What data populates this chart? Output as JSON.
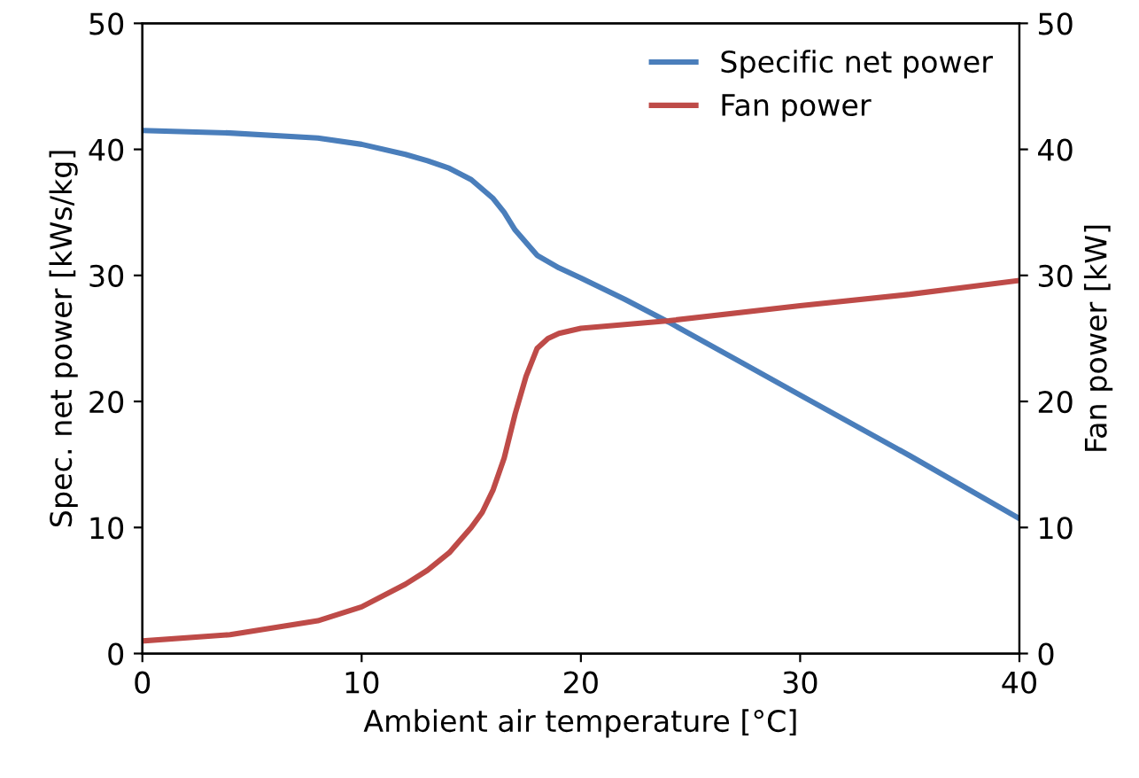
{
  "chart_data": {
    "type": "line",
    "xlabel": "Ambient air temperature [°C]",
    "ylabel": "Spec. net power [kWs/kg]",
    "y2label": "Fan power [kW]",
    "xlim": [
      0,
      40
    ],
    "xticks": [
      0,
      10,
      20,
      30,
      40
    ],
    "ylim": [
      0,
      50
    ],
    "yticks": [
      0,
      10,
      20,
      30,
      40,
      50
    ],
    "y2lim": [
      0,
      50
    ],
    "y2ticks": [
      0,
      10,
      20,
      30,
      40,
      50
    ],
    "grid": false,
    "legend": "top right",
    "marker": "none",
    "line_style": "solid",
    "series": [
      {
        "name": "Specific net power",
        "color": "#4a7ebb",
        "x": [
          0,
          4,
          8,
          10,
          12,
          13,
          14,
          15,
          16,
          16.5,
          17,
          18,
          19,
          20,
          22,
          24,
          27,
          30,
          35,
          40
        ],
        "values": [
          41.5,
          41.3,
          40.9,
          40.4,
          39.6,
          39.1,
          38.5,
          37.6,
          36.1,
          35.0,
          33.6,
          31.6,
          30.6,
          29.8,
          28.1,
          26.3,
          23.4,
          20.5,
          15.7,
          10.7
        ]
      },
      {
        "name": "Fan power",
        "color": "#be4b48",
        "axis": "y2",
        "x": [
          0,
          4,
          8,
          10,
          12,
          13,
          14,
          15,
          15.5,
          16,
          16.5,
          17,
          17.5,
          18,
          18.5,
          19,
          20,
          22,
          24,
          30,
          35,
          40
        ],
        "values": [
          1.0,
          1.5,
          2.6,
          3.7,
          5.5,
          6.6,
          8.0,
          10.0,
          11.2,
          13.0,
          15.5,
          19.0,
          22.0,
          24.2,
          25.0,
          25.4,
          25.8,
          26.1,
          26.4,
          27.6,
          28.5,
          29.6
        ]
      }
    ]
  }
}
